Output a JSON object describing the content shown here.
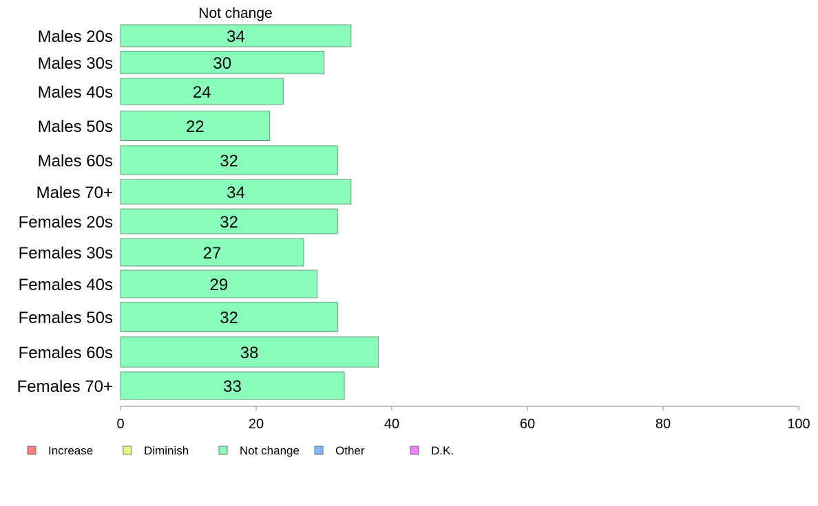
{
  "chart_data": {
    "type": "bar",
    "orientation": "horizontal",
    "title": "Not change",
    "categories": [
      "Males 20s",
      "Males 30s",
      "Males 40s",
      "Males 50s",
      "Males 60s",
      "Males 70+",
      "Females 20s",
      "Females 30s",
      "Females 40s",
      "Females 50s",
      "Females 60s",
      "Females 70+"
    ],
    "series": [
      {
        "name": "Not change",
        "values": [
          34,
          30,
          24,
          22,
          32,
          34,
          32,
          27,
          29,
          32,
          38,
          33
        ]
      }
    ],
    "data_labels": [
      "34",
      "30",
      "24",
      "22",
      "32",
      "34",
      "32",
      "27",
      "29",
      "32",
      "38",
      "33"
    ],
    "xlim": [
      0,
      100
    ],
    "xticks": [
      "0",
      "20",
      "40",
      "60",
      "80",
      "100"
    ],
    "grid": false,
    "legend": {
      "placement": "bottom-left",
      "items": [
        {
          "name": "Increase",
          "color": "#f8807f"
        },
        {
          "name": "Diminish",
          "color": "#eaf97f"
        },
        {
          "name": "Not change",
          "color": "#88feba"
        },
        {
          "name": "Other",
          "color": "#80baf8"
        },
        {
          "name": "D.K.",
          "color": "#ee80f8"
        }
      ]
    },
    "bar_color": "#88feba",
    "bar_border_color": "#6a9b80"
  }
}
